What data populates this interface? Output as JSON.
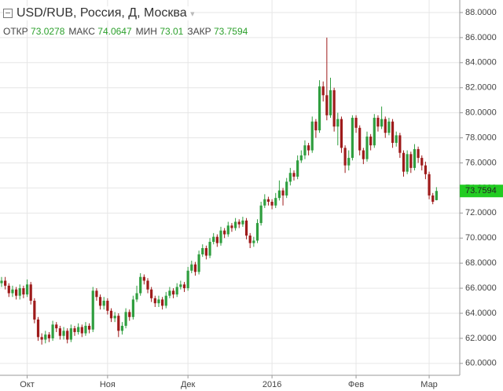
{
  "chart_data": {
    "type": "candlestick",
    "title": "USD/RUB, Россия, Д, Москва",
    "stats": [
      {
        "label": "ОТКР",
        "value": 73.0278
      },
      {
        "label": "МАКС",
        "value": 74.0647
      },
      {
        "label": "МИН",
        "value": 73.01
      },
      {
        "label": "ЗАКР",
        "value": 73.7594
      }
    ],
    "categories": [
      null,
      null,
      null,
      null,
      null,
      null,
      null,
      "Окт",
      null,
      null,
      null,
      null,
      null,
      null,
      null,
      null,
      null,
      null,
      null,
      null,
      null,
      null,
      null,
      null,
      null,
      null,
      null,
      null,
      null,
      "Ноя",
      null,
      null,
      null,
      null,
      null,
      null,
      null,
      null,
      null,
      null,
      null,
      null,
      null,
      null,
      null,
      null,
      null,
      null,
      null,
      null,
      null,
      "Дек",
      null,
      null,
      null,
      null,
      null,
      null,
      null,
      null,
      null,
      null,
      null,
      null,
      null,
      null,
      null,
      null,
      null,
      null,
      null,
      null,
      null,
      null,
      "2016",
      null,
      null,
      null,
      null,
      null,
      null,
      null,
      null,
      null,
      null,
      null,
      null,
      null,
      null,
      null,
      null,
      null,
      null,
      null,
      null,
      null,
      null,
      "Фев",
      null,
      null,
      null,
      null,
      null,
      null,
      null,
      null,
      null,
      null,
      null,
      null,
      null,
      null,
      null,
      null,
      null,
      null,
      null,
      "Мар",
      null,
      null
    ],
    "open": [
      66.4,
      66.6,
      66.2,
      65.6,
      65.9,
      65.4,
      66.0,
      65.5,
      66.3,
      65.0,
      63.5,
      62.1,
      61.9,
      62.3,
      62.0,
      63.1,
      62.8,
      62.2,
      62.6,
      61.9,
      62.8,
      62.5,
      62.9,
      62.4,
      63.0,
      62.7,
      65.8,
      65.3,
      64.6,
      65.0,
      64.2,
      63.6,
      63.8,
      62.6,
      63.0,
      64.1,
      63.7,
      65.1,
      65.6,
      66.9,
      66.6,
      65.9,
      65.2,
      64.8,
      65.1,
      64.6,
      65.4,
      65.8,
      65.5,
      66.1,
      66.3,
      66.0,
      67.4,
      67.9,
      67.3,
      68.7,
      69.2,
      68.6,
      69.7,
      70.1,
      69.6,
      70.6,
      70.3,
      71.0,
      70.8,
      71.3,
      71.1,
      71.4,
      70.2,
      69.6,
      69.8,
      71.2,
      72.6,
      73.1,
      72.9,
      72.6,
      73.2,
      73.8,
      73.4,
      74.5,
      75.2,
      74.9,
      76.2,
      76.6,
      77.4,
      77.0,
      79.3,
      78.6,
      82.1,
      81.4,
      79.8,
      81.8,
      78.9,
      79.5,
      77.2,
      75.8,
      76.4,
      79.6,
      78.8,
      77.0,
      76.3,
      78.1,
      77.4,
      79.6,
      78.9,
      79.5,
      78.4,
      79.3,
      77.6,
      78.2,
      76.8,
      75.3,
      76.7,
      75.6,
      77.1,
      76.4,
      75.8,
      75.1,
      73.4,
      73.0278
    ],
    "high": [
      66.9,
      66.9,
      66.4,
      66.2,
      66.1,
      66.3,
      66.2,
      66.7,
      66.5,
      65.2,
      63.7,
      62.4,
      62.6,
      62.5,
      63.4,
      63.3,
      63.0,
      62.9,
      62.8,
      63.1,
      63.0,
      63.2,
      63.1,
      63.3,
      63.2,
      66.1,
      66.0,
      65.5,
      65.3,
      65.2,
      64.4,
      64.1,
      64.0,
      63.3,
      64.4,
      64.3,
      65.4,
      66.2,
      67.2,
      67.1,
      66.8,
      66.1,
      65.4,
      65.4,
      65.3,
      65.7,
      66.1,
      66.0,
      66.4,
      66.6,
      66.5,
      67.7,
      68.2,
      68.1,
      69.0,
      69.5,
      69.4,
      70.0,
      70.4,
      70.3,
      70.9,
      70.8,
      71.3,
      71.2,
      71.6,
      71.5,
      71.7,
      71.6,
      70.4,
      70.1,
      71.5,
      72.9,
      73.5,
      73.3,
      73.1,
      73.6,
      74.6,
      74.0,
      74.8,
      75.6,
      75.4,
      76.6,
      77.0,
      77.8,
      77.6,
      79.7,
      79.5,
      82.6,
      82.5,
      86.0,
      82.8,
      82.0,
      80.0,
      79.7,
      77.4,
      77.0,
      79.8,
      79.8,
      79.0,
      77.2,
      78.5,
      78.3,
      79.9,
      79.8,
      80.5,
      79.7,
      79.6,
      79.5,
      78.5,
      78.4,
      77.0,
      77.0,
      76.9,
      77.5,
      77.3,
      76.6,
      76.1,
      75.3,
      73.6,
      74.0647
    ],
    "low": [
      66.1,
      65.9,
      65.3,
      65.3,
      65.1,
      65.1,
      65.2,
      65.3,
      64.7,
      63.2,
      61.8,
      61.5,
      61.6,
      61.7,
      61.8,
      62.5,
      61.9,
      61.9,
      61.6,
      61.7,
      62.2,
      62.3,
      62.1,
      62.2,
      62.4,
      62.5,
      65.0,
      64.3,
      64.3,
      63.9,
      63.3,
      63.3,
      62.1,
      62.3,
      62.8,
      63.4,
      63.5,
      64.9,
      65.4,
      66.3,
      65.6,
      64.9,
      64.5,
      64.5,
      64.3,
      64.4,
      65.2,
      65.2,
      65.3,
      65.9,
      65.7,
      65.8,
      67.2,
      67.0,
      67.1,
      68.5,
      68.3,
      68.4,
      69.5,
      69.3,
      69.4,
      70.0,
      70.1,
      70.5,
      70.6,
      70.8,
      70.9,
      69.9,
      69.2,
      69.3,
      69.6,
      71.0,
      72.4,
      72.6,
      72.3,
      72.4,
      73.0,
      72.6,
      73.2,
      74.2,
      74.6,
      74.7,
      76.0,
      76.3,
      76.6,
      76.8,
      78.0,
      78.4,
      80.9,
      79.4,
      79.6,
      78.5,
      77.4,
      76.8,
      75.2,
      75.4,
      76.2,
      78.4,
      76.6,
      75.9,
      76.1,
      77.0,
      77.2,
      78.5,
      78.7,
      78.0,
      78.2,
      77.2,
      77.3,
      76.4,
      74.9,
      75.1,
      75.2,
      75.4,
      76.0,
      75.4,
      74.7,
      73.1,
      72.7,
      73.01
    ],
    "close": [
      66.6,
      66.2,
      65.6,
      65.9,
      65.4,
      66.0,
      65.5,
      66.3,
      65.0,
      63.5,
      62.1,
      61.9,
      62.3,
      62.0,
      63.1,
      62.8,
      62.2,
      62.6,
      61.9,
      62.8,
      62.5,
      62.9,
      62.4,
      63.0,
      62.7,
      65.8,
      65.3,
      64.6,
      65.0,
      64.2,
      63.6,
      63.8,
      62.6,
      63.0,
      64.1,
      63.7,
      65.1,
      65.6,
      66.9,
      66.6,
      65.9,
      65.2,
      64.8,
      65.1,
      64.6,
      65.4,
      65.8,
      65.5,
      66.1,
      66.3,
      66.0,
      67.4,
      67.9,
      67.3,
      68.7,
      69.2,
      68.6,
      69.7,
      70.1,
      69.6,
      70.6,
      70.3,
      71.0,
      70.8,
      71.3,
      71.1,
      71.4,
      70.2,
      69.6,
      69.8,
      71.2,
      72.6,
      73.1,
      72.9,
      72.6,
      73.2,
      73.8,
      73.4,
      74.5,
      75.2,
      74.9,
      76.2,
      76.6,
      77.4,
      77.0,
      79.3,
      78.6,
      82.1,
      81.4,
      79.8,
      81.8,
      78.9,
      79.5,
      77.2,
      75.8,
      76.4,
      79.6,
      78.8,
      77.0,
      76.3,
      78.1,
      77.4,
      79.6,
      78.9,
      79.5,
      78.4,
      79.3,
      77.6,
      78.2,
      76.8,
      75.3,
      76.7,
      75.6,
      77.1,
      76.4,
      75.8,
      75.1,
      73.4,
      72.9,
      73.7594
    ],
    "up_color": "#2f9e3f",
    "down_color": "#9e1b1b",
    "last_color": "#22cc22",
    "ylim": [
      59.05,
      89.0
    ],
    "yticks": [
      {
        "value": 60,
        "label": "60.0000"
      },
      {
        "value": 62,
        "label": "62.0000"
      },
      {
        "value": 64,
        "label": "64.0000"
      },
      {
        "value": 66,
        "label": "66.0000"
      },
      {
        "value": 68,
        "label": "68.0000"
      },
      {
        "value": 70,
        "label": "70.0000"
      },
      {
        "value": 72,
        "label": "72.0000"
      },
      {
        "value": 74,
        "label": "74.0000"
      },
      {
        "value": 76,
        "label": "76.0000"
      },
      {
        "value": 78,
        "label": "78.0000"
      },
      {
        "value": 80,
        "label": "80.0000"
      },
      {
        "value": 82,
        "label": "82.0000"
      },
      {
        "value": 84,
        "label": "84.0000"
      },
      {
        "value": 86,
        "label": "86.0000"
      },
      {
        "value": 88,
        "label": "88.0000"
      }
    ],
    "grid": true
  }
}
